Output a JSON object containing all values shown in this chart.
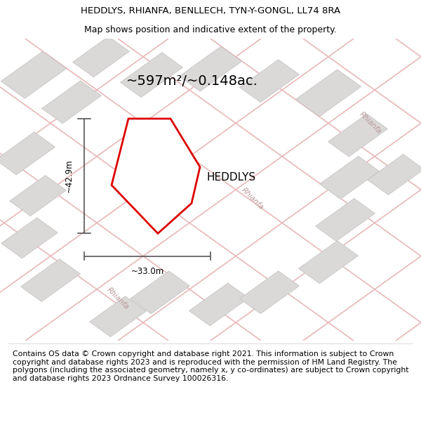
{
  "title_line1": "HEDDLYS, RHIANFA, BENLLECH, TYN-Y-GONGL, LL74 8RA",
  "title_line2": "Map shows position and indicative extent of the property.",
  "area_text": "~597m²/~0.148ac.",
  "property_label": "HEDDLYS",
  "dim_width": "~33.0m",
  "dim_height": "~42.9m",
  "footer_text": "Contains OS data © Crown copyright and database right 2021. This information is subject to Crown copyright and database rights 2023 and is reproduced with the permission of HM Land Registry. The polygons (including the associated geometry, namely x, y co-ordinates) are subject to Crown copyright and database rights 2023 Ordnance Survey 100026316.",
  "map_bg": "#f7f4f4",
  "road_color": "#e8b8b8",
  "building_color": "#dbd8d8",
  "building_edge": "#c8c4c4",
  "plot_color": "#ffffff",
  "plot_edge": "#dd0000",
  "road_label_color": "#b89898",
  "dim_color": "#555555",
  "title_fontsize": 9.5,
  "subtitle_fontsize": 9.0,
  "area_fontsize": 14,
  "label_fontsize": 11,
  "dim_fontsize": 8.5,
  "footer_fontsize": 7.8,
  "road_linewidth": 1.2,
  "plot_linewidth": 2.0
}
